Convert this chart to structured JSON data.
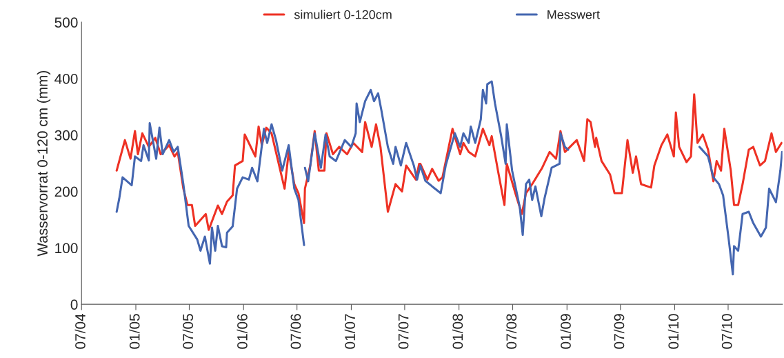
{
  "chart_data": {
    "type": "line",
    "ylabel": "Wasservorrat 0-120 cm (mm)",
    "xlim": [
      "2004-07-01",
      "2011-01-01"
    ],
    "xticks": [
      {
        "value": "2004-07-01",
        "label": "07/04"
      },
      {
        "value": "2005-01-01",
        "label": "01/05"
      },
      {
        "value": "2005-07-01",
        "label": "07/05"
      },
      {
        "value": "2006-01-01",
        "label": "01/06"
      },
      {
        "value": "2006-07-01",
        "label": "07/06"
      },
      {
        "value": "2007-01-01",
        "label": "01/07"
      },
      {
        "value": "2007-07-01",
        "label": "07/07"
      },
      {
        "value": "2008-01-01",
        "label": "01/08"
      },
      {
        "value": "2008-07-01",
        "label": "07/08"
      },
      {
        "value": "2009-01-01",
        "label": "01/09"
      },
      {
        "value": "2009-07-01",
        "label": "07/09"
      },
      {
        "value": "2010-01-01",
        "label": "01/10"
      },
      {
        "value": "2010-07-01",
        "label": "07/10"
      }
    ],
    "ylim": [
      0,
      500
    ],
    "yticks": [
      0,
      100,
      200,
      300,
      400,
      500
    ],
    "grid": false,
    "legend": "top",
    "marker": "none",
    "line_style": "solid",
    "series": [
      {
        "name": "simuliert 0-120cm",
        "color": "#ee3124",
        "x": [
          "2004-10-28",
          "2004-11-25",
          "2004-12-14",
          "2004-12-29",
          "2005-01-08",
          "2005-01-23",
          "2005-02-14",
          "2005-03-08",
          "2005-03-26",
          "2005-04-24",
          "2005-05-12",
          "2005-05-23",
          "2005-06-11",
          "2005-06-25",
          "2005-07-10",
          "2005-07-21",
          "2005-08-26",
          "2005-09-05",
          "2005-10-06",
          "2005-10-20",
          "2005-11-06",
          "2005-11-25",
          "2005-12-03",
          "2005-12-29",
          "2006-01-05",
          "2006-01-19",
          "2006-02-10",
          "2006-02-21",
          "2006-03-04",
          "2006-03-19",
          "2006-04-06",
          "2006-04-28",
          "2006-05-20",
          "2006-06-03",
          "2006-06-22",
          "2006-07-06",
          "2006-07-25",
          "2006-07-28",
          "2006-08-15",
          "2006-08-30",
          "2006-09-13",
          "2006-10-02",
          "2006-10-09",
          "2006-10-31",
          "2006-11-21",
          "2006-12-18",
          "2007-01-08",
          "2007-02-07",
          "2007-02-17",
          "2007-03-11",
          "2007-03-26",
          "2007-04-10",
          "2007-05-05",
          "2007-05-31",
          "2007-06-22",
          "2007-07-06",
          "2007-08-08",
          "2007-08-19",
          "2007-08-23",
          "2007-09-16",
          "2007-10-02",
          "2007-10-24",
          "2007-11-06",
          "2007-12-10",
          "2008-01-05",
          "2008-01-16",
          "2008-02-03",
          "2008-02-25",
          "2008-03-22",
          "2008-04-13",
          "2008-04-21",
          "2008-05-12",
          "2008-06-03",
          "2008-06-11",
          "2008-07-10",
          "2008-08-01",
          "2008-08-15",
          "2008-09-05",
          "2008-10-09",
          "2008-11-03",
          "2008-11-25",
          "2008-12-10",
          "2008-12-25",
          "2009-02-03",
          "2009-02-28",
          "2009-03-11",
          "2009-03-22",
          "2009-04-06",
          "2009-04-10",
          "2009-04-28",
          "2009-05-27",
          "2009-06-11",
          "2009-07-06",
          "2009-07-25",
          "2009-08-12",
          "2009-08-23",
          "2009-09-09",
          "2009-10-13",
          "2009-10-24",
          "2009-11-17",
          "2009-12-07",
          "2009-12-29",
          "2010-01-05",
          "2010-01-16",
          "2010-02-10",
          "2010-02-25",
          "2010-03-08",
          "2010-03-19",
          "2010-04-06",
          "2010-04-24",
          "2010-05-12",
          "2010-05-23",
          "2010-06-07",
          "2010-06-18",
          "2010-07-10",
          "2010-07-21",
          "2010-08-04",
          "2010-08-19",
          "2010-09-09",
          "2010-09-24",
          "2010-10-17",
          "2010-11-03",
          "2010-11-25",
          "2010-12-10",
          "2010-12-29"
        ],
        "values": [
          237,
          291,
          258,
          307,
          266,
          303,
          279,
          295,
          266,
          282,
          262,
          270,
          205,
          176,
          176,
          139,
          160,
          132,
          175,
          160,
          182,
          193,
          246,
          254,
          301,
          286,
          262,
          315,
          282,
          313,
          303,
          254,
          205,
          270,
          213,
          197,
          144,
          205,
          246,
          307,
          237,
          237,
          303,
          266,
          279,
          266,
          286,
          270,
          323,
          279,
          319,
          279,
          164,
          213,
          200,
          246,
          221,
          249,
          249,
          221,
          240,
          219,
          225,
          311,
          266,
          286,
          270,
          262,
          311,
          282,
          298,
          237,
          176,
          249,
          197,
          160,
          197,
          213,
          242,
          270,
          258,
          307,
          270,
          291,
          254,
          328,
          323,
          279,
          295,
          254,
          230,
          197,
          197,
          291,
          233,
          262,
          213,
          207,
          246,
          282,
          301,
          262,
          340,
          279,
          252,
          262,
          372,
          286,
          301,
          274,
          218,
          254,
          237,
          311,
          237,
          176,
          176,
          213,
          274,
          279,
          246,
          254,
          303,
          270,
          286
        ]
      },
      {
        "name": "Messwert",
        "color": "#4466b0",
        "x": [
          "2004-10-28",
          "2004-11-06",
          "2004-11-17",
          "2004-12-18",
          "2004-12-29",
          "2005-01-19",
          "2005-01-27",
          "2005-02-14",
          "2005-02-17",
          "2005-03-11",
          "2005-03-22",
          "2005-04-02",
          "2005-04-24",
          "2005-05-09",
          "2005-05-23",
          "2005-06-11",
          "2005-06-29",
          "2005-07-28",
          "2005-08-08",
          "2005-08-23",
          "2005-09-09",
          "2005-09-16",
          "2005-09-27",
          "2005-10-06",
          "2005-10-20",
          "2005-11-03",
          "2005-11-06",
          "2005-11-25",
          "2005-12-10",
          "2005-12-29",
          "2006-01-19",
          "2006-01-30",
          "2006-02-17",
          "2006-03-11",
          "2006-03-22",
          "2006-04-06",
          "2006-04-21",
          "2006-05-12",
          "2006-06-03",
          "2006-06-22",
          "2006-07-06",
          "2006-07-25",
          "2006-07-26",
          "2006-07-28",
          "2006-08-08",
          "2006-08-30",
          "2006-09-20",
          "2006-10-06",
          "2006-10-20",
          "2006-11-10",
          "2006-12-10",
          "2007-01-01",
          "2007-01-16",
          "2007-01-19",
          "2007-01-30",
          "2007-02-17",
          "2007-03-08",
          "2007-03-19",
          "2007-04-02",
          "2007-04-13",
          "2007-05-05",
          "2007-05-23",
          "2007-05-31",
          "2007-06-18",
          "2007-07-06",
          "2007-08-01",
          "2007-08-12",
          "2007-08-23",
          "2007-09-09",
          "2007-10-02",
          "2007-10-31",
          "2007-11-17",
          "2007-12-18",
          "2008-01-05",
          "2008-01-16",
          "2008-02-03",
          "2008-02-10",
          "2008-02-25",
          "2008-03-15",
          "2008-03-22",
          "2008-04-02",
          "2008-04-06",
          "2008-04-21",
          "2008-05-02",
          "2008-05-23",
          "2008-06-07",
          "2008-06-11",
          "2008-06-29",
          "2008-07-25",
          "2008-08-04",
          "2008-08-15",
          "2008-08-26",
          "2008-09-05",
          "2008-09-16",
          "2008-10-06",
          "2008-10-17",
          "2008-11-10",
          "2008-12-07",
          "2008-12-10",
          "2008-12-25",
          "2009-01-05",
          "2009-07-03",
          "2010-03-26",
          "2010-04-24",
          "2010-05-12",
          "2010-05-31",
          "2010-06-14",
          "2010-07-03",
          "2010-07-17",
          "2010-07-21",
          "2010-08-04",
          "2010-08-19",
          "2010-09-09",
          "2010-09-24",
          "2010-10-20",
          "2010-11-06",
          "2010-11-17",
          "2010-12-10",
          "2010-12-25",
          "2010-12-31"
        ],
        "values": [
          164,
          188,
          225,
          211,
          262,
          254,
          282,
          255,
          321,
          258,
          313,
          266,
          291,
          270,
          279,
          213,
          139,
          115,
          95,
          120,
          72,
          136,
          95,
          139,
          103,
          101,
          127,
          138,
          205,
          225,
          221,
          242,
          218,
          311,
          286,
          319,
          291,
          237,
          282,
          205,
          185,
          105,
          null,
          242,
          218,
          303,
          242,
          301,
          262,
          254,
          291,
          279,
          303,
          356,
          323,
          360,
          380,
          360,
          374,
          344,
          279,
          249,
          279,
          246,
          286,
          246,
          221,
          246,
          219,
          209,
          197,
          246,
          303,
          279,
          303,
          286,
          315,
          286,
          328,
          380,
          356,
          390,
          395,
          356,
          298,
          249,
          319,
          237,
          172,
          123,
          213,
          221,
          185,
          209,
          156,
          188,
          242,
          249,
          303,
          279,
          274,
          null,
          279,
          262,
          225,
          213,
          193,
          115,
          53,
          103,
          95,
          160,
          164,
          144,
          120,
          136,
          205,
          181,
          237,
          270
        ]
      }
    ]
  }
}
